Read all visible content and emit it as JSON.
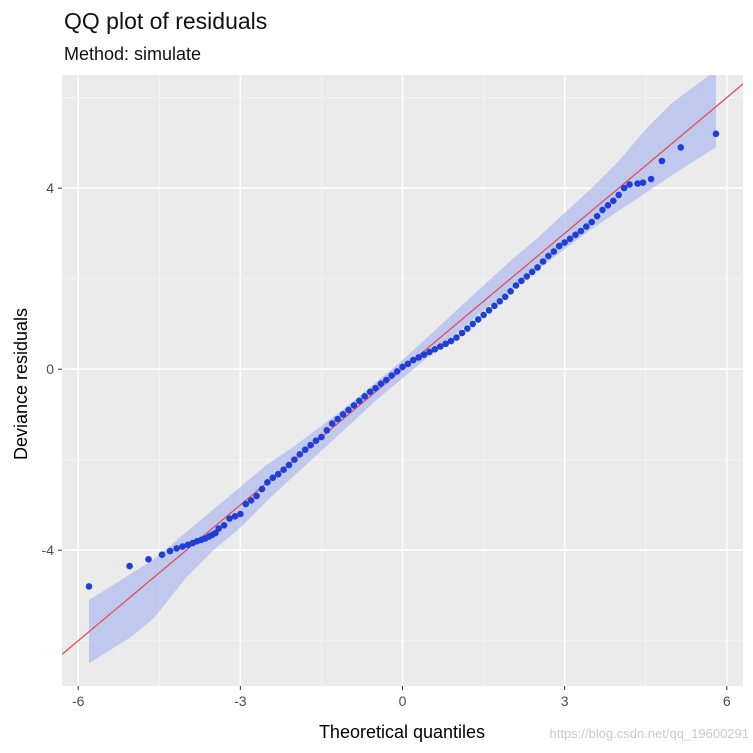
{
  "chart_data": {
    "type": "scatter",
    "title": "QQ plot of residuals",
    "subtitle": "Method: simulate",
    "xlabel": "Theoretical quantiles",
    "ylabel": "Deviance residuals",
    "xlim": [
      -6.3,
      6.3
    ],
    "ylim": [
      -7.0,
      6.5
    ],
    "x_ticks": [
      -6,
      -3,
      0,
      3,
      6
    ],
    "x_tick_labels": [
      "-6",
      "-3",
      "0",
      "3",
      "6"
    ],
    "y_ticks": [
      -4,
      0,
      4
    ],
    "y_tick_labels": [
      "-4",
      "0",
      "4"
    ],
    "grid": true,
    "reference_line": {
      "slope": 1,
      "intercept": 0,
      "color": "#e0505a"
    },
    "band_color": "#a9b7ee",
    "point_color": "#1f3fd6",
    "background_color": "#ebebeb",
    "reference_band": [
      [
        -5.8,
        -6.5,
        -5.1
      ],
      [
        -5.0,
        -5.9,
        -4.5
      ],
      [
        -4.6,
        -5.5,
        -4.2
      ],
      [
        -4.0,
        -4.6,
        -3.6
      ],
      [
        -3.5,
        -4.0,
        -3.1
      ],
      [
        -3.0,
        -3.5,
        -2.6
      ],
      [
        -2.5,
        -2.9,
        -2.1
      ],
      [
        -2.0,
        -2.35,
        -1.7
      ],
      [
        -1.5,
        -1.8,
        -1.25
      ],
      [
        -1.0,
        -1.25,
        -0.8
      ],
      [
        -0.5,
        -0.7,
        -0.3
      ],
      [
        0.0,
        -0.2,
        0.2
      ],
      [
        0.5,
        0.3,
        0.75
      ],
      [
        1.0,
        0.8,
        1.3
      ],
      [
        1.5,
        1.3,
        1.85
      ],
      [
        2.0,
        1.75,
        2.4
      ],
      [
        2.5,
        2.2,
        2.9
      ],
      [
        3.0,
        2.65,
        3.45
      ],
      [
        3.5,
        3.1,
        4.0
      ],
      [
        4.0,
        3.5,
        4.6
      ],
      [
        4.5,
        3.9,
        5.3
      ],
      [
        5.0,
        4.3,
        5.9
      ],
      [
        5.8,
        4.9,
        6.6
      ]
    ],
    "points": [
      [
        -5.8,
        -4.8
      ],
      [
        -5.05,
        -4.35
      ],
      [
        -4.7,
        -4.2
      ],
      [
        -4.45,
        -4.1
      ],
      [
        -4.3,
        -4.02
      ],
      [
        -4.18,
        -3.96
      ],
      [
        -4.07,
        -3.92
      ],
      [
        -3.97,
        -3.88
      ],
      [
        -3.88,
        -3.84
      ],
      [
        -3.8,
        -3.8
      ],
      [
        -3.72,
        -3.77
      ],
      [
        -3.65,
        -3.74
      ],
      [
        -3.58,
        -3.7
      ],
      [
        -3.52,
        -3.66
      ],
      [
        -3.46,
        -3.62
      ],
      [
        -3.4,
        -3.52
      ],
      [
        -3.3,
        -3.45
      ],
      [
        -3.2,
        -3.3
      ],
      [
        -3.1,
        -3.25
      ],
      [
        -3.0,
        -3.2
      ],
      [
        -2.9,
        -2.98
      ],
      [
        -2.8,
        -2.9
      ],
      [
        -2.7,
        -2.8
      ],
      [
        -2.6,
        -2.65
      ],
      [
        -2.5,
        -2.5
      ],
      [
        -2.4,
        -2.4
      ],
      [
        -2.3,
        -2.32
      ],
      [
        -2.2,
        -2.22
      ],
      [
        -2.1,
        -2.12
      ],
      [
        -2.0,
        -2.0
      ],
      [
        -1.9,
        -1.88
      ],
      [
        -1.8,
        -1.78
      ],
      [
        -1.7,
        -1.68
      ],
      [
        -1.6,
        -1.58
      ],
      [
        -1.5,
        -1.5
      ],
      [
        -1.4,
        -1.35
      ],
      [
        -1.3,
        -1.2
      ],
      [
        -1.2,
        -1.1
      ],
      [
        -1.1,
        -1.0
      ],
      [
        -1.0,
        -0.9
      ],
      [
        -0.9,
        -0.8
      ],
      [
        -0.8,
        -0.7
      ],
      [
        -0.7,
        -0.6
      ],
      [
        -0.6,
        -0.5
      ],
      [
        -0.5,
        -0.42
      ],
      [
        -0.4,
        -0.32
      ],
      [
        -0.3,
        -0.24
      ],
      [
        -0.2,
        -0.14
      ],
      [
        -0.1,
        -0.05
      ],
      [
        0.0,
        0.05
      ],
      [
        0.1,
        0.12
      ],
      [
        0.2,
        0.2
      ],
      [
        0.3,
        0.26
      ],
      [
        0.4,
        0.32
      ],
      [
        0.5,
        0.38
      ],
      [
        0.6,
        0.44
      ],
      [
        0.7,
        0.5
      ],
      [
        0.8,
        0.56
      ],
      [
        0.9,
        0.62
      ],
      [
        1.0,
        0.7
      ],
      [
        1.1,
        0.8
      ],
      [
        1.2,
        0.9
      ],
      [
        1.3,
        1.0
      ],
      [
        1.4,
        1.1
      ],
      [
        1.5,
        1.2
      ],
      [
        1.6,
        1.3
      ],
      [
        1.7,
        1.4
      ],
      [
        1.8,
        1.5
      ],
      [
        1.9,
        1.6
      ],
      [
        2.0,
        1.72
      ],
      [
        2.1,
        1.85
      ],
      [
        2.2,
        1.95
      ],
      [
        2.3,
        2.05
      ],
      [
        2.4,
        2.15
      ],
      [
        2.5,
        2.25
      ],
      [
        2.6,
        2.38
      ],
      [
        2.7,
        2.5
      ],
      [
        2.8,
        2.6
      ],
      [
        2.9,
        2.72
      ],
      [
        3.0,
        2.8
      ],
      [
        3.1,
        2.88
      ],
      [
        3.2,
        2.97
      ],
      [
        3.3,
        3.05
      ],
      [
        3.4,
        3.15
      ],
      [
        3.5,
        3.25
      ],
      [
        3.6,
        3.38
      ],
      [
        3.7,
        3.52
      ],
      [
        3.8,
        3.62
      ],
      [
        3.9,
        3.72
      ],
      [
        4.0,
        3.85
      ],
      [
        4.1,
        4.0
      ],
      [
        4.2,
        4.08
      ],
      [
        4.35,
        4.1
      ],
      [
        4.45,
        4.12
      ],
      [
        4.6,
        4.2
      ],
      [
        4.8,
        4.6
      ],
      [
        5.15,
        4.9
      ],
      [
        5.8,
        5.2
      ]
    ]
  },
  "watermark": "https://blog.csdn.net/qq_19600291"
}
